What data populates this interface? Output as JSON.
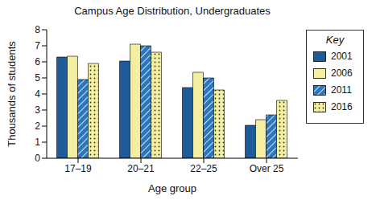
{
  "chart_data": {
    "type": "bar",
    "title": "Campus Age Distribution, Undergraduates",
    "x_label": "Age group",
    "y_label": "Thousands of students",
    "legend_title": "Key",
    "categories": [
      "17–19",
      "20–21",
      "22–25",
      "Over 25"
    ],
    "series": [
      {
        "name": "2001",
        "color": "#1d5b9a",
        "values": [
          6.3,
          6.05,
          4.4,
          2.05
        ]
      },
      {
        "name": "2006",
        "color": "#f4eea0",
        "values": [
          6.35,
          7.1,
          5.35,
          2.4
        ]
      },
      {
        "name": "2011",
        "color": "#2b76bd",
        "values": [
          4.9,
          7.0,
          5.0,
          2.7
        ]
      },
      {
        "name": "2016",
        "color": "#f4eea0",
        "values": [
          5.9,
          6.6,
          4.25,
          3.6
        ]
      }
    ],
    "ylim": [
      0,
      8
    ],
    "yticks": [
      0,
      1,
      2,
      3,
      4,
      5,
      6,
      7,
      8
    ],
    "grid": false,
    "legend": "right"
  }
}
